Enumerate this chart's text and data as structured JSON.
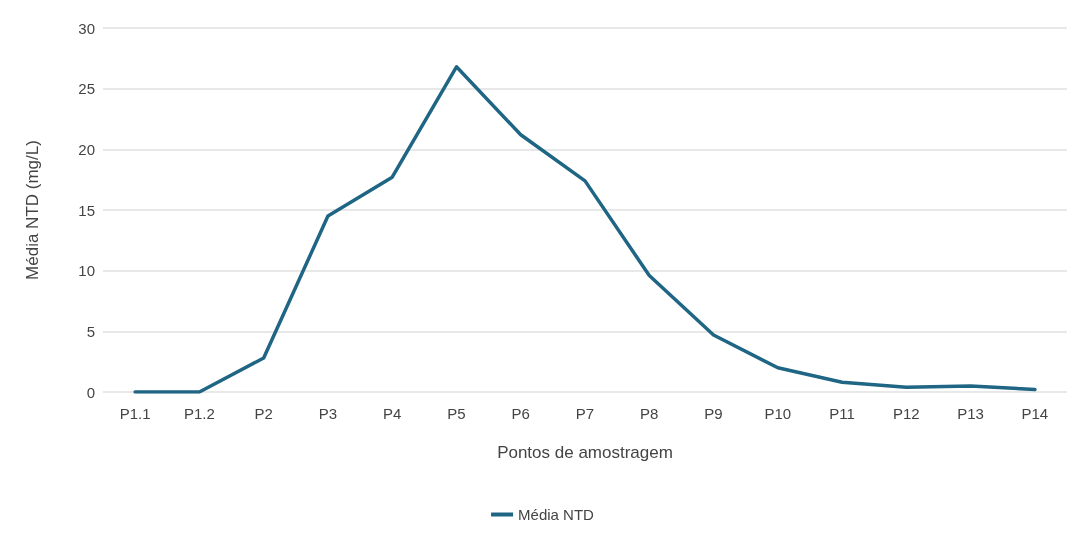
{
  "chart_data": {
    "type": "line",
    "xlabel": "Pontos de amostragem",
    "ylabel": "Média NTD (mg/L)",
    "categories": [
      "P1.1",
      "P1.2",
      "P2",
      "P3",
      "P4",
      "P5",
      "P6",
      "P7",
      "P8",
      "P9",
      "P10",
      "P11",
      "P12",
      "P13",
      "P14"
    ],
    "series": [
      {
        "name": "Média NTD",
        "color": "#1f6584",
        "values": [
          0,
          0,
          2.8,
          14.5,
          17.7,
          26.8,
          21.2,
          17.4,
          9.6,
          4.7,
          2.0,
          0.8,
          0.4,
          0.5,
          0.2
        ]
      }
    ],
    "ylim": [
      0,
      30
    ],
    "yticks": [
      0,
      5,
      10,
      15,
      20,
      25,
      30
    ],
    "grid": "y",
    "legend": "bottom",
    "marker": "none",
    "line_style": "solid"
  }
}
